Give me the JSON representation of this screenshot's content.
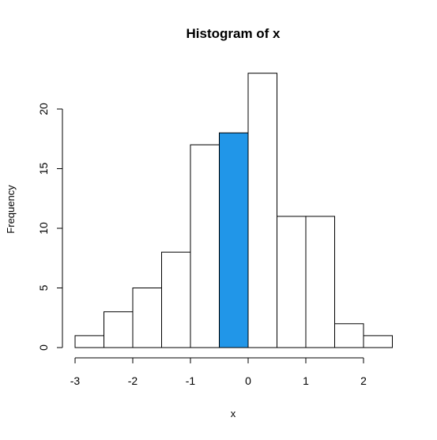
{
  "chart_data": {
    "type": "histogram",
    "title": "Histogram of x",
    "xlabel": "x",
    "ylabel": "Frequency",
    "bin_edges": [
      -3,
      -2.5,
      -2,
      -1.5,
      -1,
      -0.5,
      0,
      0.5,
      1,
      1.5,
      2,
      2.5
    ],
    "counts": [
      1,
      3,
      5,
      8,
      17,
      18,
      23,
      11,
      11,
      2,
      1
    ],
    "highlight_bin": 5,
    "bar_fill": "#ffffff",
    "highlight_fill": "#2196e8",
    "bar_stroke": "#000000",
    "xlim": [
      -3,
      2.5
    ],
    "ylim": [
      0,
      23
    ],
    "x_ticks": [
      -3,
      -2,
      -1,
      0,
      1,
      2
    ],
    "x_tick_labels": [
      "-3",
      "-2",
      "-1",
      "0",
      "1",
      "2"
    ],
    "y_ticks": [
      0,
      5,
      10,
      15,
      20
    ],
    "y_tick_labels": [
      "0",
      "5",
      "10",
      "15",
      "20"
    ],
    "grid": false,
    "legend": "none"
  }
}
